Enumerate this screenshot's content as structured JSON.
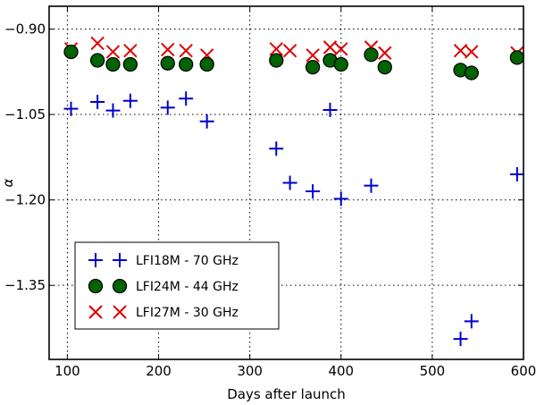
{
  "chart_data": {
    "type": "scatter",
    "xlabel": "Days after launch",
    "ylabel": "α",
    "xlim": [
      80,
      600
    ],
    "ylim": [
      -1.48,
      -0.86
    ],
    "xticks": [
      100,
      200,
      300,
      400,
      500,
      600
    ],
    "xtick_labels": [
      "100",
      "200",
      "300",
      "400",
      "500",
      "600"
    ],
    "yticks": [
      -0.9,
      -1.05,
      -1.2,
      -1.35
    ],
    "ytick_labels": [
      "−0.90",
      "−1.05",
      "−1.20",
      "−1.35"
    ],
    "grid": true,
    "legend_position": "lower-left",
    "series": [
      {
        "name": "LFI18M - 70 GHz",
        "marker": "plus",
        "color": "#0000cc",
        "x": [
          104,
          133,
          150,
          169,
          210,
          230,
          253,
          329,
          344,
          369,
          388,
          400,
          433,
          531,
          543,
          593
        ],
        "y": [
          -1.04,
          -1.028,
          -1.043,
          -1.026,
          -1.038,
          -1.022,
          -1.062,
          -1.11,
          -1.17,
          -1.185,
          -1.042,
          -1.198,
          -1.175,
          -1.444,
          -1.413,
          -1.155
        ]
      },
      {
        "name": "LFI24M - 44 GHz",
        "marker": "circle",
        "color": "#006400",
        "x": [
          104,
          133,
          150,
          169,
          210,
          230,
          253,
          329,
          369,
          388,
          400,
          433,
          448,
          531,
          543,
          593
        ],
        "y": [
          -0.94,
          -0.955,
          -0.962,
          -0.962,
          -0.96,
          -0.962,
          -0.962,
          -0.955,
          -0.967,
          -0.955,
          -0.962,
          -0.945,
          -0.967,
          -0.972,
          -0.977,
          -0.95
        ]
      },
      {
        "name": "LFI27M - 30 GHz",
        "marker": "x",
        "color": "#dd0000",
        "x": [
          104,
          133,
          150,
          169,
          210,
          230,
          253,
          329,
          344,
          369,
          388,
          400,
          433,
          448,
          531,
          543,
          593
        ],
        "y": [
          -0.935,
          -0.925,
          -0.94,
          -0.938,
          -0.936,
          -0.938,
          -0.946,
          -0.935,
          -0.938,
          -0.946,
          -0.932,
          -0.935,
          -0.932,
          -0.942,
          -0.938,
          -0.94,
          -0.942
        ]
      }
    ]
  }
}
